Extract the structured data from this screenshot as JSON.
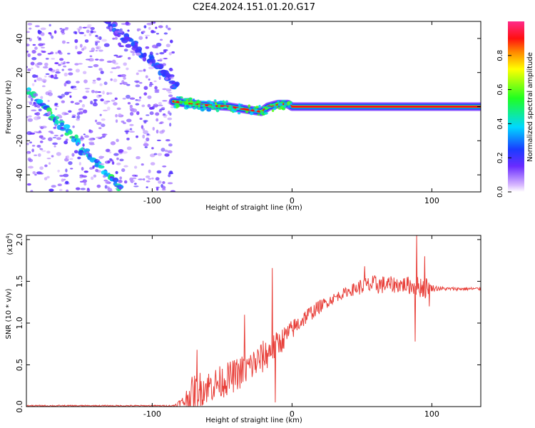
{
  "figure": {
    "title": "C2E4.2024.151.01.20.G17"
  },
  "chart_data": [
    {
      "type": "heatmap",
      "xlabel": "Height of straight line (km)",
      "ylabel": "Frequency (Hz)",
      "xlim": [
        -190,
        135
      ],
      "ylim": [
        -50,
        50
      ],
      "x_ticks": [
        -100,
        0,
        100
      ],
      "x_tick_labels": [
        "-100",
        "0",
        "100"
      ],
      "y_ticks": [
        -40,
        -20,
        0,
        20,
        40
      ],
      "y_tick_labels": [
        "-40",
        "-20",
        "0",
        "20",
        "40"
      ],
      "colorbar": {
        "label": "Normalized spectral amplitude",
        "range": [
          0,
          1
        ],
        "ticks": [
          0.0,
          0.2,
          0.4,
          0.6,
          0.8
        ],
        "tick_labels": [
          "0.0",
          "0.2",
          "0.4",
          "0.6",
          "0.8"
        ]
      },
      "features": [
        {
          "kind": "diagonal-streak",
          "from": [
            -190,
            10
          ],
          "to": [
            -120,
            -50
          ],
          "amplitude": 0.35
        },
        {
          "kind": "diagonal-streak",
          "from": [
            -132,
            50
          ],
          "to": [
            -82,
            12
          ],
          "amplitude": 0.2
        },
        {
          "kind": "noise-region",
          "xrange": [
            -190,
            -85
          ],
          "yrange": [
            -50,
            50
          ],
          "amplitude": 0.12
        },
        {
          "kind": "signal-line",
          "points": [
            [
              -85,
              3
            ],
            [
              -65,
              1
            ],
            [
              -45,
              0
            ],
            [
              -30,
              -2
            ],
            [
              -22,
              -3
            ],
            [
              -17,
              0
            ],
            [
              -10,
              1.5
            ],
            [
              -3,
              1.5
            ],
            [
              0,
              0
            ],
            [
              135,
              0
            ]
          ],
          "amplitude": 0.9
        }
      ],
      "grid": false,
      "legend": "colorbar-right"
    },
    {
      "type": "line",
      "xlabel": "Height of straight line (km)",
      "ylabel": "SNR (10 * v/v)",
      "y_scale_note": "(x10",
      "y_scale_exp": "4",
      "y_scale_close": ")",
      "xlim": [
        -190,
        135
      ],
      "ylim": [
        0,
        2.05
      ],
      "x_ticks": [
        -100,
        0,
        100
      ],
      "x_tick_labels": [
        "-100",
        "0",
        "100"
      ],
      "y_ticks": [
        0.0,
        0.5,
        1.0,
        1.5,
        2.0
      ],
      "y_tick_labels": [
        "0.0",
        "0.5",
        "1.0",
        "1.5",
        "2.0"
      ],
      "grid": false,
      "series": [
        {
          "color": "#e8403a",
          "envelope": {
            "x": [
              -190,
              -85,
              -78,
              -72,
              -68,
              -60,
              -50,
              -40,
              -30,
              -20,
              -10,
              0,
              10,
              20,
              30,
              40,
              50,
              60,
              70,
              80,
              90,
              95,
              100,
              110,
              120,
              135
            ],
            "mean": [
              0.01,
              0.01,
              0.05,
              0.15,
              0.2,
              0.24,
              0.3,
              0.38,
              0.48,
              0.6,
              0.75,
              0.92,
              1.08,
              1.2,
              1.3,
              1.38,
              1.44,
              1.46,
              1.46,
              1.46,
              1.44,
              1.43,
              1.42,
              1.41,
              1.41,
              1.41
            ],
            "noise": [
              0.008,
              0.008,
              0.08,
              0.2,
              0.22,
              0.2,
              0.2,
              0.2,
              0.2,
              0.2,
              0.16,
              0.12,
              0.1,
              0.08,
              0.06,
              0.06,
              0.1,
              0.12,
              0.1,
              0.1,
              0.12,
              0.15,
              0.04,
              0.02,
              0.02,
              0.02
            ]
          },
          "spikes": [
            {
              "x": -68,
              "y": 0.68
            },
            {
              "x": -34,
              "y": 1.1
            },
            {
              "x": -14,
              "y": 1.66
            },
            {
              "x": -12,
              "y": 0.05
            },
            {
              "x": 52,
              "y": 1.68
            },
            {
              "x": 89,
              "y": 2.05
            },
            {
              "x": 88,
              "y": 0.78
            },
            {
              "x": 95,
              "y": 1.8
            },
            {
              "x": 98,
              "y": 1.2
            }
          ]
        }
      ]
    }
  ]
}
